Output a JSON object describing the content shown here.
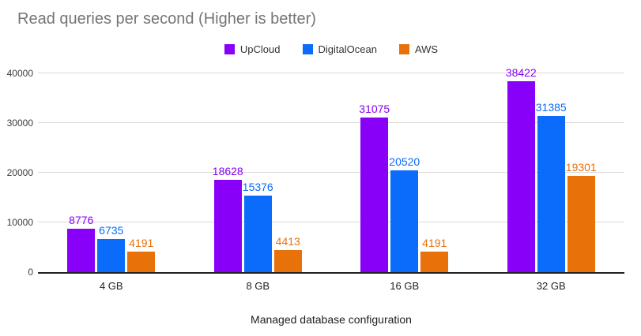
{
  "chart_data": {
    "type": "bar",
    "title": "Read queries per second (Higher is better)",
    "xlabel": "Managed database configuration",
    "ylabel": "",
    "categories": [
      "4 GB",
      "8 GB",
      "16 GB",
      "32 GB"
    ],
    "series": [
      {
        "name": "UpCloud",
        "color": "#8800f7",
        "values": [
          8776,
          18628,
          31075,
          38422
        ]
      },
      {
        "name": "DigitalOcean",
        "color": "#0b6cfb",
        "values": [
          6735,
          15376,
          20520,
          31385
        ]
      },
      {
        "name": "AWS",
        "color": "#e8710a",
        "values": [
          4191,
          4413,
          4191,
          19301
        ]
      }
    ],
    "ylim": [
      0,
      40000
    ],
    "yticks": [
      0,
      10000,
      20000,
      30000,
      40000
    ],
    "grid": true,
    "legend_position": "top",
    "value_labels": true
  },
  "colors": {
    "title_text": "#757575",
    "axis_line": "#212121",
    "gridline": "#d9d9d9",
    "tick_text": "#3c3c3c"
  }
}
